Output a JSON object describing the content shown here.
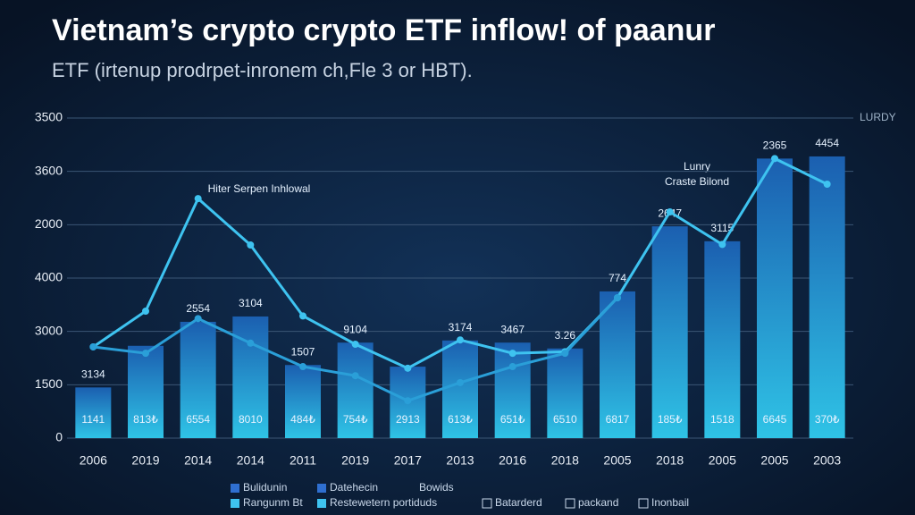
{
  "chart_data": {
    "type": "bar-line",
    "title": "Vietnam’s crypto crypto ETF inflow! of paanur",
    "subtitle": "ETF (irtenup prodrpet-inronem ch,Fle 3 or HBT).",
    "right_label": "LURDY",
    "annotations": [
      "Hiter Serpen Inhlowal",
      "Lunry",
      "Craste Bilond"
    ],
    "categories": [
      "2006",
      "2019",
      "2014",
      "2014",
      "2011",
      "2019",
      "2017",
      "2013",
      "2016",
      "2018",
      "2005",
      "2018",
      "2005",
      "2005",
      "2003"
    ],
    "values": [
      0.95,
      1.73,
      2.18,
      2.28,
      1.37,
      1.79,
      1.34,
      1.83,
      1.79,
      1.68,
      2.75,
      3.97,
      3.69,
      5.24,
      5.28
    ],
    "bar_texts": [
      "1141",
      "813₺",
      "6554",
      "8010",
      "484₺",
      "754₺",
      "2913",
      "613₺",
      "651₺",
      "6510",
      "6817",
      "185₺",
      "1518",
      "6645",
      "370₺"
    ],
    "top_labels": [
      "3134",
      null,
      "2554",
      "3104",
      "1507",
      "9104",
      null,
      "3174",
      "3467",
      "3.26",
      "774",
      "2647",
      "3115",
      "2365",
      "4454"
    ],
    "series": [
      {
        "color": "#3ec3f0",
        "values": [
          1.71,
          2.38,
          4.49,
          3.62,
          2.29,
          1.76,
          1.31,
          1.84,
          1.59,
          1.62,
          2.63,
          4.24,
          3.63,
          5.24,
          4.76
        ]
      },
      {
        "color": "#2a9fd8",
        "values": [
          1.71,
          1.59,
          2.24,
          1.78,
          1.34,
          1.17,
          0.7,
          1.04,
          1.34,
          1.59,
          2.63,
          null,
          null,
          null,
          null
        ]
      }
    ],
    "ylim": [
      0,
      6
    ],
    "yticks": [
      0,
      {
        "value": 1,
        "label": "1500"
      },
      {
        "value": 2,
        "label": "3000"
      },
      {
        "value": 3,
        "label": "4000"
      },
      {
        "value": 4,
        "label": "2000"
      },
      {
        "value": 5,
        "label": "3600"
      },
      {
        "value": 6,
        "label": "3500"
      }
    ],
    "grid": true,
    "legend": [
      "Bulidunin",
      "Datehecin",
      "Bowids",
      "Rangunm Bt",
      "Restewetern portiduds",
      "Batarderd",
      "packand",
      "Inonbail"
    ]
  }
}
